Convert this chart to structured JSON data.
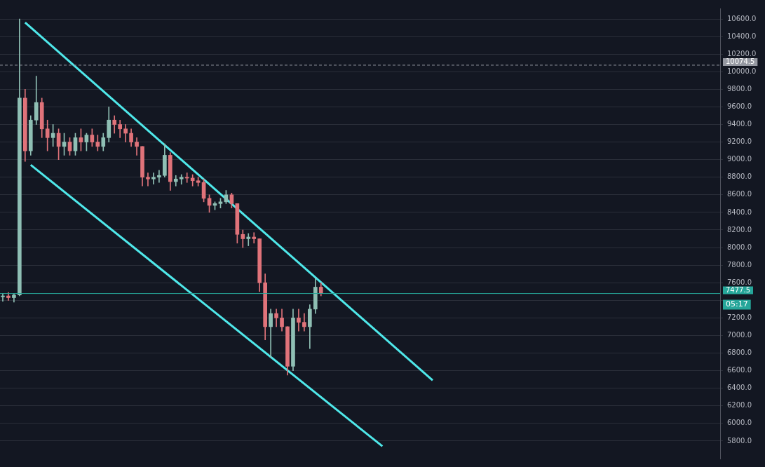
{
  "chart_data": {
    "type": "candlestick",
    "categories": [
      null,
      null,
      null,
      null,
      null,
      null,
      null,
      null,
      null,
      null,
      null,
      null,
      null,
      null,
      null,
      null,
      null,
      null,
      null,
      null,
      null,
      null,
      null,
      null,
      null,
      null,
      null,
      null,
      null,
      null,
      null,
      null,
      null,
      null,
      null,
      null,
      null,
      null,
      null,
      null,
      null,
      null,
      null,
      null,
      null,
      null,
      null,
      null,
      null,
      null,
      null,
      null,
      null,
      null,
      null,
      null,
      null,
      null,
      null,
      null,
      null,
      null,
      null,
      null,
      null,
      null,
      null,
      null,
      null,
      null,
      null,
      null,
      null,
      null,
      null,
      null,
      null,
      null,
      null,
      null,
      null,
      null,
      null,
      null,
      null,
      null,
      null,
      null,
      null,
      null,
      null,
      null,
      null,
      null,
      null,
      null,
      null,
      null,
      null,
      null,
      null,
      null,
      null,
      null,
      null,
      null,
      null,
      null,
      null,
      null,
      null,
      null,
      null,
      null,
      null,
      null,
      null,
      null,
      null,
      null,
      null,
      null,
      null,
      null,
      null,
      null,
      null,
      null,
      null
    ],
    "ohlc": [
      [
        7440,
        7480,
        7390,
        7450
      ],
      [
        7450,
        7490,
        7400,
        7430
      ],
      [
        7430,
        7480,
        7380,
        7460
      ],
      [
        7460,
        10600,
        7450,
        9700
      ],
      [
        9700,
        9800,
        8980,
        9100
      ],
      [
        9100,
        9500,
        9050,
        9450
      ],
      [
        9450,
        9950,
        9400,
        9650
      ],
      [
        9650,
        9700,
        9250,
        9350
      ],
      [
        9350,
        9450,
        9100,
        9250
      ],
      [
        9250,
        9400,
        9150,
        9300
      ],
      [
        9300,
        9350,
        9000,
        9150
      ],
      [
        9150,
        9300,
        9050,
        9200
      ],
      [
        9200,
        9250,
        9050,
        9100
      ],
      [
        9100,
        9300,
        9050,
        9250
      ],
      [
        9250,
        9350,
        9100,
        9200
      ],
      [
        9200,
        9300,
        9100,
        9280
      ],
      [
        9280,
        9350,
        9150,
        9200
      ],
      [
        9200,
        9280,
        9100,
        9150
      ],
      [
        9150,
        9300,
        9100,
        9250
      ],
      [
        9250,
        9600,
        9200,
        9450
      ],
      [
        9450,
        9500,
        9300,
        9400
      ],
      [
        9400,
        9450,
        9250,
        9350
      ],
      [
        9350,
        9400,
        9200,
        9300
      ],
      [
        9300,
        9350,
        9150,
        9200
      ],
      [
        9200,
        9250,
        9050,
        9150
      ],
      [
        9150,
        9150,
        8700,
        8800
      ],
      [
        8800,
        8850,
        8700,
        8780
      ],
      [
        8780,
        8850,
        8720,
        8800
      ],
      [
        8800,
        8880,
        8740,
        8820
      ],
      [
        8820,
        9180,
        8800,
        9050
      ],
      [
        9050,
        9080,
        8650,
        8750
      ],
      [
        8750,
        8820,
        8700,
        8780
      ],
      [
        8780,
        8830,
        8720,
        8800
      ],
      [
        8800,
        8850,
        8740,
        8790
      ],
      [
        8790,
        8830,
        8700,
        8760
      ],
      [
        8760,
        8800,
        8700,
        8740
      ],
      [
        8740,
        8780,
        8520,
        8560
      ],
      [
        8560,
        8600,
        8400,
        8480
      ],
      [
        8480,
        8520,
        8430,
        8500
      ],
      [
        8500,
        8560,
        8450,
        8520
      ],
      [
        8520,
        8650,
        8500,
        8600
      ],
      [
        8600,
        8620,
        8450,
        8500
      ],
      [
        8500,
        8500,
        8050,
        8150
      ],
      [
        8150,
        8200,
        8000,
        8100
      ],
      [
        8100,
        8160,
        8020,
        8120
      ],
      [
        8120,
        8170,
        8050,
        8100
      ],
      [
        8100,
        8100,
        7500,
        7600
      ],
      [
        7600,
        7700,
        6950,
        7100
      ],
      [
        7100,
        7300,
        6750,
        7250
      ],
      [
        7250,
        7300,
        7100,
        7200
      ],
      [
        7200,
        7300,
        7050,
        7100
      ],
      [
        7100,
        7100,
        6550,
        6650
      ],
      [
        6650,
        7300,
        6600,
        7200
      ],
      [
        7200,
        7300,
        7050,
        7150
      ],
      [
        7150,
        7250,
        7050,
        7100
      ],
      [
        7100,
        7350,
        6850,
        7300
      ],
      [
        7300,
        7650,
        7250,
        7550
      ],
      [
        7550,
        7600,
        7450,
        7477.5
      ],
      null,
      null,
      null,
      null,
      null,
      null,
      null,
      null,
      null,
      null,
      null,
      null,
      null,
      null,
      null,
      null,
      null,
      null,
      null,
      null,
      null,
      null,
      null,
      null,
      null,
      null,
      null,
      null,
      null,
      null,
      null,
      null,
      null,
      null,
      null,
      null,
      null,
      null,
      null,
      null,
      null,
      null,
      null,
      null,
      null,
      null,
      null,
      null,
      null,
      null,
      null,
      null,
      null,
      null,
      null,
      null,
      null,
      null,
      null,
      null,
      null,
      null,
      null,
      null,
      null,
      null,
      null,
      null,
      null,
      null,
      null
    ],
    "series": [
      {
        "type": "line",
        "color": "#4fe8ea",
        "values": [
          null,
          null,
          null,
          null,
          10560,
          null,
          null,
          null,
          null,
          null,
          null,
          null,
          null,
          null,
          null,
          null,
          null,
          null,
          null,
          null,
          null,
          null,
          null,
          null,
          null,
          null,
          null,
          null,
          null,
          null,
          null,
          null,
          null,
          null,
          null,
          null,
          null,
          null,
          null,
          null,
          null,
          null,
          null,
          null,
          null,
          null,
          null,
          null,
          null,
          null,
          null,
          null,
          null,
          null,
          null,
          null,
          null,
          null,
          null,
          null,
          null,
          null,
          null,
          null,
          null,
          null,
          null,
          null,
          null,
          null,
          null,
          null,
          null,
          null,
          null,
          null,
          null,
          6490,
          null,
          null,
          null,
          null,
          null,
          null,
          null,
          null,
          null,
          null,
          null,
          null,
          null,
          null,
          null,
          null,
          null,
          null,
          null,
          null,
          null,
          null,
          null,
          null,
          null,
          null,
          null,
          null,
          null,
          null,
          null,
          null,
          null,
          null,
          null,
          null,
          null,
          null,
          null,
          null,
          null,
          null,
          null,
          null,
          null,
          null,
          null,
          null,
          null,
          null,
          null
        ]
      },
      {
        "type": "line",
        "color": "#4fe8ea",
        "values": [
          null,
          null,
          null,
          null,
          null,
          8940,
          null,
          null,
          null,
          null,
          null,
          null,
          null,
          null,
          null,
          null,
          null,
          null,
          null,
          null,
          null,
          null,
          null,
          null,
          null,
          null,
          null,
          null,
          null,
          null,
          null,
          null,
          null,
          null,
          null,
          null,
          null,
          null,
          null,
          null,
          null,
          null,
          null,
          null,
          null,
          null,
          null,
          null,
          null,
          null,
          null,
          null,
          null,
          null,
          null,
          null,
          null,
          null,
          null,
          null,
          null,
          null,
          null,
          null,
          null,
          null,
          null,
          null,
          5740,
          null,
          null,
          null,
          null,
          null,
          null,
          null,
          null,
          null,
          null,
          null,
          null,
          null,
          null,
          null,
          null,
          null,
          null,
          null,
          null,
          null,
          null,
          null,
          null,
          null,
          null,
          null,
          null,
          null,
          null,
          null,
          null,
          null,
          null,
          null,
          null,
          null,
          null,
          null,
          null,
          null,
          null,
          null,
          null,
          null,
          null,
          null,
          null,
          null,
          null,
          null,
          null,
          null,
          null,
          null,
          null,
          null,
          null,
          null,
          null
        ]
      }
    ],
    "ylim": [
      5600,
      10720
    ],
    "yticks": [
      {
        "value": 5800,
        "label": "5800.0"
      },
      {
        "value": 6000,
        "label": "6000.0"
      },
      {
        "value": 6200,
        "label": "6200.0"
      },
      {
        "value": 6400,
        "label": "6400.0"
      },
      {
        "value": 6600,
        "label": "6600.0"
      },
      {
        "value": 6800,
        "label": "6800.0"
      },
      {
        "value": 7000,
        "label": "7000.0"
      },
      {
        "value": 7200,
        "label": "7200.0"
      },
      {
        "value": 7400,
        "label": null
      },
      {
        "value": 7600,
        "label": "7600.0"
      },
      {
        "value": 7800,
        "label": "7800.0"
      },
      {
        "value": 8000,
        "label": "8000.0"
      },
      {
        "value": 8200,
        "label": "8200.0"
      },
      {
        "value": 8400,
        "label": "8400.0"
      },
      {
        "value": 8600,
        "label": "8600.0"
      },
      {
        "value": 8800,
        "label": "8800.0"
      },
      {
        "value": 9000,
        "label": "9000.0"
      },
      {
        "value": 9200,
        "label": "9200.0"
      },
      {
        "value": 9400,
        "label": "9400.0"
      },
      {
        "value": 9600,
        "label": "9600.0"
      },
      {
        "value": 9800,
        "label": "9800.0"
      },
      {
        "value": 10000,
        "label": "10000.0"
      },
      {
        "value": 10200,
        "label": "10200.0"
      },
      {
        "value": 10400,
        "label": "10400.0"
      },
      {
        "value": 10600,
        "label": "10600.0"
      }
    ],
    "ref_lines": [
      {
        "axis": "y",
        "value": 10074.5,
        "label": "10074.5",
        "color": "#9598a1",
        "line_style": "dashed"
      },
      {
        "axis": "y",
        "value": 7477.5,
        "label": "7477.5",
        "color": "#26a69a",
        "line_style": "solid"
      }
    ],
    "annotations": [
      "05:17"
    ],
    "grid": "y",
    "tick_labels": "y",
    "legend": false
  }
}
